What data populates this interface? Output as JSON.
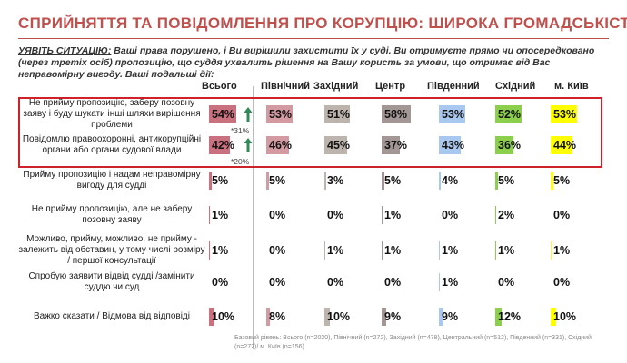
{
  "title": "СПРИЙНЯТТЯ ТА ПОВІДОМЛЕННЯ ПРО КОРУПЦІЮ: ШИРОКА ГРОМАДСЬКІСТЬ",
  "question": {
    "lead": "УЯВІТЬ СИТУАЦІЮ:",
    "text": " Ваші права порушено, і Ви вирішили захистити їх у суді. Ви отримуєте прямо чи опосередковано (через третіх осіб) пропозицію, що суддя ухвалить рішення на Вашу користь за умови, що отримає від Вас неправомірну вигоду. Ваші подальші дії:"
  },
  "columns": [
    {
      "label": "Всього",
      "color": "#c9717f"
    },
    {
      "label": "Північний",
      "color": "#d49aa2"
    },
    {
      "label": "Західний",
      "color": "#bdb4ae"
    },
    {
      "label": "Центр",
      "color": "#a39795"
    },
    {
      "label": "Південний",
      "color": "#a9c8ef"
    },
    {
      "label": "Східний",
      "color": "#8bcf4c"
    },
    {
      "label": "м. Київ",
      "color": "#ffff00"
    }
  ],
  "rows": [
    {
      "label": "Не прийму пропозицію, заберу позовну заяву і буду шукати інші шляхи вирішення проблеми",
      "cells": [
        {
          "value": 54,
          "label": "54%"
        },
        {
          "value": 53,
          "label": "53%"
        },
        {
          "value": 51,
          "label": "51%"
        },
        {
          "value": 58,
          "label": "58%"
        },
        {
          "value": 53,
          "label": "53%"
        },
        {
          "value": 52,
          "label": "52%"
        },
        {
          "value": 53,
          "label": "53%"
        }
      ]
    },
    {
      "label": "Повідомлю правоохоронні, антикорупційні органи або органи судової влади",
      "cells": [
        {
          "value": 42,
          "label": "42%"
        },
        {
          "value": 46,
          "label": "46%"
        },
        {
          "value": 45,
          "label": "45%"
        },
        {
          "value": 37,
          "label": "37%"
        },
        {
          "value": 43,
          "label": "43%"
        },
        {
          "value": 36,
          "label": "36%"
        },
        {
          "value": 44,
          "label": "44%"
        }
      ]
    },
    {
      "label": "Прийму пропозицію і надам неправомірну вигоду для судді",
      "cells": [
        {
          "value": 5,
          "label": "5%"
        },
        {
          "value": 5,
          "label": "5%"
        },
        {
          "value": 3,
          "label": "3%"
        },
        {
          "value": 5,
          "label": "5%"
        },
        {
          "value": 4,
          "label": "4%"
        },
        {
          "value": 5,
          "label": "5%"
        },
        {
          "value": 5,
          "label": "5%"
        }
      ]
    },
    {
      "label": "Не прийму пропозицію, але не заберу позовну заяву",
      "cells": [
        {
          "value": 1,
          "label": "1%"
        },
        {
          "value": 0,
          "label": "0%"
        },
        {
          "value": 0,
          "label": "0%"
        },
        {
          "value": 1,
          "label": "1%"
        },
        {
          "value": 0,
          "label": "0%"
        },
        {
          "value": 2,
          "label": "2%"
        },
        {
          "value": 0,
          "label": "0%"
        }
      ]
    },
    {
      "label": "Можливо, прийму, можливо, не прийму - залежить від обставин, у тому числі розміру / першої консультації",
      "cells": [
        {
          "value": 1,
          "label": "1%"
        },
        {
          "value": 0,
          "label": "0%"
        },
        {
          "value": 1,
          "label": "1%"
        },
        {
          "value": 1,
          "label": "1%"
        },
        {
          "value": 1,
          "label": "1%"
        },
        {
          "value": 1,
          "label": "1%"
        },
        {
          "value": 1,
          "label": "1%"
        }
      ]
    },
    {
      "label": "Спробую заявити відвід судді /замінити суддю чи суд",
      "cells": [
        {
          "value": 0,
          "label": "0%"
        },
        {
          "value": 0,
          "label": "0%"
        },
        {
          "value": 0,
          "label": "0%"
        },
        {
          "value": 0,
          "label": "0%"
        },
        {
          "value": 1,
          "label": "1%"
        },
        {
          "value": 0,
          "label": "0%"
        },
        {
          "value": 0,
          "label": "0%"
        }
      ]
    },
    {
      "label": "Важко сказати / Відмова від відповіді",
      "cells": [
        {
          "value": 10,
          "label": "10%"
        },
        {
          "value": 8,
          "label": "8%"
        },
        {
          "value": 10,
          "label": "10%"
        },
        {
          "value": 9,
          "label": "9%"
        },
        {
          "value": 9,
          "label": "9%"
        },
        {
          "value": 12,
          "label": "12%"
        },
        {
          "value": 10,
          "label": "10%"
        }
      ]
    }
  ],
  "annotations": [
    "*31%",
    "*20%"
  ],
  "footnote": "Базовий рівень: Всього (n=2020), Північний (n=272), Західний (n=478), Центральний (n=512), Південний (n=331), Східний (n=272)/ м. Київ (n=156)."
}
